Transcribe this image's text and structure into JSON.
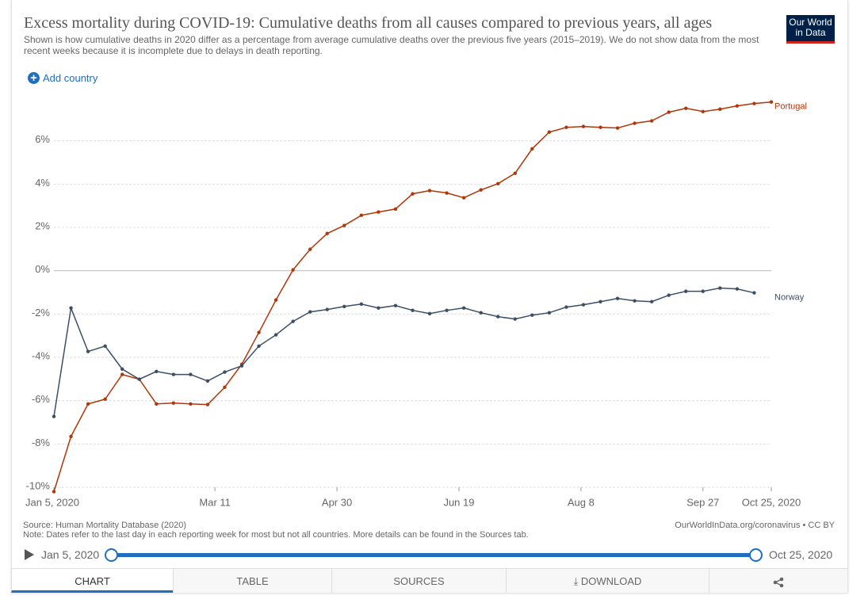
{
  "chart_data": {
    "type": "line",
    "title": "Excess mortality during COVID-19: Cumulative deaths from all causes compared to previous years, all ages",
    "subtitle": "Shown is how cumulative deaths in 2020 differ as a percentage from average cumulative deaths over the previous five years (2015–2019). We do not show data from the most recent weeks because it is incomplete due to delays in death reporting.",
    "x": [
      "2020-01-05",
      "2020-01-12",
      "2020-01-19",
      "2020-01-26",
      "2020-02-02",
      "2020-02-09",
      "2020-02-16",
      "2020-02-23",
      "2020-03-01",
      "2020-03-08",
      "2020-03-15",
      "2020-03-22",
      "2020-03-29",
      "2020-04-05",
      "2020-04-12",
      "2020-04-19",
      "2020-04-26",
      "2020-05-03",
      "2020-05-10",
      "2020-05-17",
      "2020-05-24",
      "2020-05-31",
      "2020-06-07",
      "2020-06-14",
      "2020-06-21",
      "2020-06-28",
      "2020-07-05",
      "2020-07-12",
      "2020-07-19",
      "2020-07-26",
      "2020-08-02",
      "2020-08-09",
      "2020-08-16",
      "2020-08-23",
      "2020-08-30",
      "2020-09-06",
      "2020-09-13",
      "2020-09-20",
      "2020-09-27",
      "2020-10-04",
      "2020-10-11",
      "2020-10-18",
      "2020-10-25"
    ],
    "series": [
      {
        "name": "Portugal",
        "color": "#b13507",
        "values": [
          -10.2,
          -7.65,
          -6.15,
          -5.93,
          -4.79,
          -5.01,
          -6.15,
          -6.11,
          -6.15,
          -6.18,
          -5.38,
          -4.32,
          -2.85,
          -1.35,
          0.04,
          0.99,
          1.72,
          2.09,
          2.56,
          2.71,
          2.85,
          3.55,
          3.7,
          3.59,
          3.37,
          3.73,
          4.02,
          4.5,
          5.63,
          6.4,
          6.62,
          6.66,
          6.62,
          6.59,
          6.81,
          6.92,
          7.32,
          7.5,
          7.35,
          7.46,
          7.61,
          7.72,
          7.79
        ]
      },
      {
        "name": "Norway",
        "color": "#3c4e66",
        "values": [
          -6.73,
          -1.72,
          -3.73,
          -3.48,
          -4.54,
          -5.01,
          -4.65,
          -4.79,
          -4.79,
          -5.09,
          -4.68,
          -4.39,
          -3.48,
          -2.96,
          -2.34,
          -1.9,
          -1.79,
          -1.65,
          -1.54,
          -1.72,
          -1.61,
          -1.83,
          -1.98,
          -1.83,
          -1.72,
          -1.94,
          -2.12,
          -2.23,
          -2.05,
          -1.94,
          -1.68,
          -1.57,
          -1.43,
          -1.28,
          -1.39,
          -1.43,
          -1.13,
          -0.95,
          -0.95,
          -0.8,
          -0.84,
          -1.02,
          null
        ]
      }
    ],
    "xlim": [
      "2020-01-05",
      "2020-10-25"
    ],
    "xticks": [
      {
        "value": "2020-01-05",
        "label": "Jan 5, 2020"
      },
      {
        "value": "2020-03-11",
        "label": "Mar 11"
      },
      {
        "value": "2020-04-30",
        "label": "Apr 30"
      },
      {
        "value": "2020-06-19",
        "label": "Jun 19"
      },
      {
        "value": "2020-08-08",
        "label": "Aug 8"
      },
      {
        "value": "2020-09-27",
        "label": "Sep 27"
      },
      {
        "value": "2020-10-25",
        "label": "Oct 25, 2020"
      }
    ],
    "ylim": [
      -10,
      8
    ],
    "yticks": [
      {
        "value": -10,
        "label": "-10%"
      },
      {
        "value": -8,
        "label": "-8%"
      },
      {
        "value": -6,
        "label": "-6%"
      },
      {
        "value": -4,
        "label": "-4%"
      },
      {
        "value": -2,
        "label": "-2%"
      },
      {
        "value": 0,
        "label": "0%"
      },
      {
        "value": 2,
        "label": "2%"
      },
      {
        "value": 4,
        "label": "4%"
      },
      {
        "value": 6,
        "label": "6%"
      }
    ],
    "grid": true
  },
  "logo": [
    "Our World",
    "in Data"
  ],
  "add_country": "Add country",
  "footer": {
    "source": "Source: Human Mortality Database (2020)",
    "note": "Note: Dates refer to the last day in each reporting week for most but not all countries. More details can be found in the Sources tab.",
    "url": "OurWorldInData.org/coronavirus • CC BY"
  },
  "timeline": {
    "start": "Jan 5, 2020",
    "end": "Oct 25, 2020"
  },
  "tabs": [
    "CHART",
    "TABLE",
    "SOURCES",
    "DOWNLOAD"
  ]
}
